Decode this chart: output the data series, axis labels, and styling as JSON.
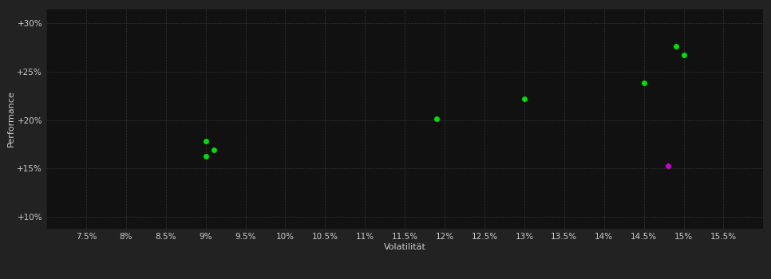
{
  "background_color": "#222222",
  "plot_bg_color": "#111111",
  "grid_color": "#333333",
  "xlabel": "Volatilität",
  "ylabel": "Performance",
  "xlim": [
    0.07,
    0.16
  ],
  "ylim": [
    0.088,
    0.315
  ],
  "xticks": [
    0.075,
    0.08,
    0.085,
    0.09,
    0.095,
    0.1,
    0.105,
    0.11,
    0.115,
    0.12,
    0.125,
    0.13,
    0.135,
    0.14,
    0.145,
    0.15,
    0.155
  ],
  "yticks": [
    0.1,
    0.15,
    0.2,
    0.25,
    0.3
  ],
  "ytick_labels": [
    "+10%",
    "+15%",
    "+20%",
    "+25%",
    "+30%"
  ],
  "xtick_labels": [
    "7.5%",
    "8%",
    "8.5%",
    "9%",
    "9.5%",
    "10%",
    "10.5%",
    "11%",
    "11.5%",
    "12%",
    "12.5%",
    "13%",
    "13.5%",
    "14%",
    "14.5%",
    "15%",
    "15.5%"
  ],
  "green_points": [
    [
      0.09,
      0.178
    ],
    [
      0.091,
      0.169
    ],
    [
      0.09,
      0.163
    ],
    [
      0.119,
      0.201
    ],
    [
      0.13,
      0.222
    ],
    [
      0.145,
      0.238
    ],
    [
      0.149,
      0.276
    ],
    [
      0.15,
      0.267
    ]
  ],
  "magenta_points": [
    [
      0.148,
      0.153
    ]
  ],
  "green_color": "#00dd00",
  "magenta_color": "#cc00cc",
  "marker_size": 5,
  "tick_color": "#cccccc",
  "label_color": "#cccccc",
  "label_fontsize": 8,
  "tick_fontsize": 7.5
}
